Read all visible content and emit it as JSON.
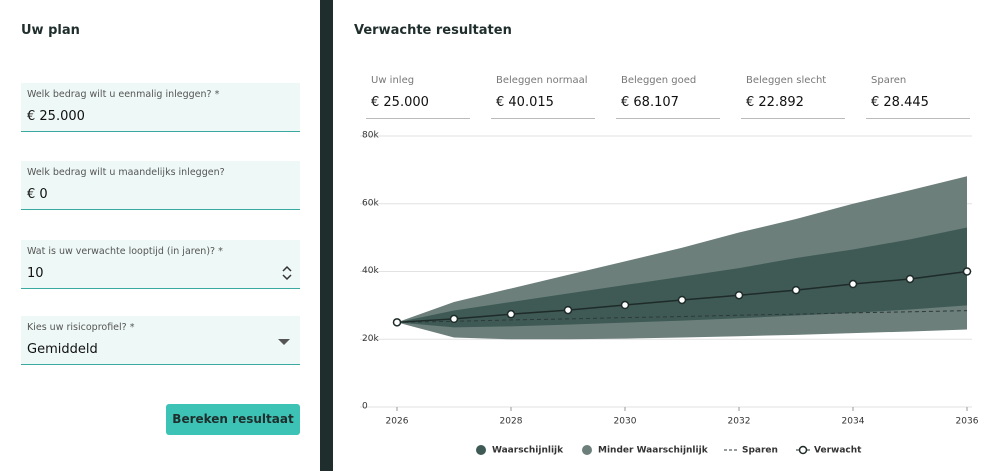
{
  "form": {
    "title": "Uw plan",
    "fields": [
      {
        "label": "Welk bedrag wilt u eenmalig inleggen? *",
        "value": "€ 25.000"
      },
      {
        "label": "Welk bedrag wilt u maandelijks inleggen?",
        "value": "€ 0"
      },
      {
        "label": "Wat is uw verwachte looptijd (in jaren)? *",
        "value": "10"
      },
      {
        "label": "Kies uw risicoprofiel? *",
        "value": "Gemiddeld"
      }
    ],
    "button": "Bereken resultaat"
  },
  "results": {
    "title": "Verwachte resultaten",
    "stats": [
      {
        "label": "Uw inleg",
        "value": "€ 25.000"
      },
      {
        "label": "Beleggen normaal",
        "value": "€ 40.015"
      },
      {
        "label": "Beleggen goed",
        "value": "€ 68.107"
      },
      {
        "label": "Beleggen slecht",
        "value": "€ 22.892"
      },
      {
        "label": "Sparen",
        "value": "€ 28.445"
      }
    ]
  },
  "chart_data": {
    "type": "area-range",
    "x": [
      2026,
      2027,
      2028,
      2029,
      2030,
      2031,
      2032,
      2033,
      2034,
      2035,
      2036
    ],
    "xlim": [
      2026,
      2036
    ],
    "xticks": [
      2026,
      2028,
      2030,
      2032,
      2034,
      2036
    ],
    "ylim": [
      0,
      80000
    ],
    "yticks": [
      0,
      {
        "value": 20000,
        "label": "20k"
      },
      {
        "value": 40000,
        "label": "40k"
      },
      {
        "value": 60000,
        "label": "60k"
      },
      {
        "value": 80000,
        "label": "80k"
      }
    ],
    "grid": true,
    "series": [
      {
        "name": "Minder Waarschijnlijk",
        "color": "#6c7f7b",
        "upper": [
          25000,
          31000,
          35000,
          39000,
          43000,
          47000,
          51500,
          55500,
          60000,
          64000,
          68107
        ],
        "lower": [
          25000,
          20500,
          20000,
          20000,
          20200,
          20500,
          20900,
          21300,
          21800,
          22300,
          22892
        ]
      },
      {
        "name": "Waarschijnlijk",
        "color": "#3f5a55",
        "upper": [
          25000,
          28500,
          31000,
          33500,
          36000,
          38500,
          41000,
          44000,
          46500,
          49500,
          53000
        ],
        "lower": [
          25000,
          23500,
          23800,
          24300,
          24900,
          25500,
          26200,
          27000,
          27800,
          28800,
          30000
        ]
      },
      {
        "name": "Sparen",
        "color": "#2c3a38",
        "values": [
          25000,
          25300,
          25700,
          26000,
          26400,
          26700,
          27100,
          27400,
          27800,
          28100,
          28445
        ],
        "dash": true
      },
      {
        "name": "Verwacht",
        "color": "#1e2b29",
        "values": [
          25000,
          26000,
          27400,
          28600,
          30100,
          31600,
          33000,
          34500,
          36300,
          37800,
          40015
        ],
        "markers": true
      }
    ]
  }
}
